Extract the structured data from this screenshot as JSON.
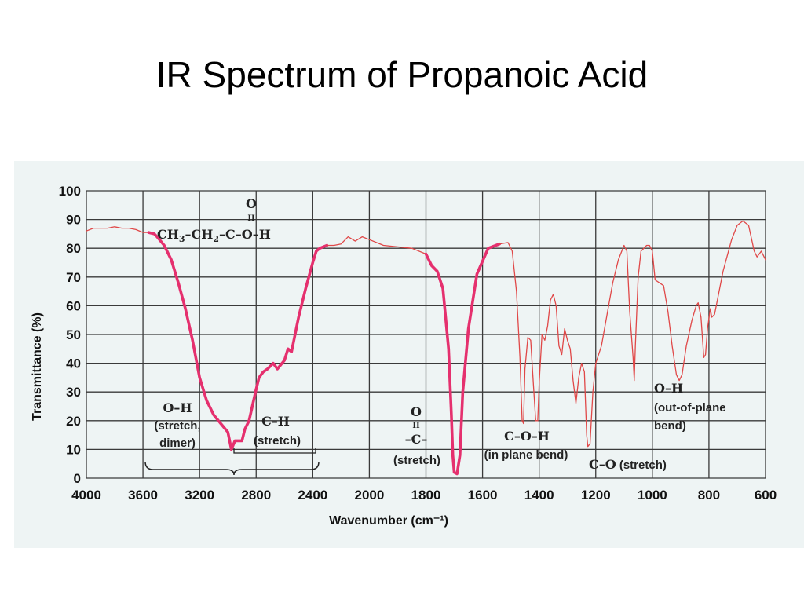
{
  "slide": {
    "title": "IR Spectrum of Propanoic Acid"
  },
  "colors": {
    "spectrum": "#e5306e",
    "spectrum_light": "#e04848",
    "grid": "#3a3a3a",
    "panel": "#eef4f4"
  },
  "chart_data": {
    "type": "line",
    "xlabel": "Wavenumber (cm⁻¹)",
    "ylabel": "Transmittance (%)",
    "xlim": [
      4000,
      600
    ],
    "ylim": [
      0,
      100
    ],
    "x_reversed": true,
    "grid": true,
    "x_ticks": [
      4000,
      3600,
      3200,
      2800,
      2400,
      2000,
      1800,
      1600,
      1400,
      1200,
      1000,
      800,
      600
    ],
    "y_ticks": [
      0,
      10,
      20,
      30,
      40,
      50,
      60,
      70,
      80,
      90,
      100
    ],
    "x_tick_labels": [
      "4000",
      "3600",
      "3200",
      "2800",
      "2400",
      "2000",
      "1800",
      "1600",
      "1400",
      "1200",
      "1000",
      "800",
      "600"
    ],
    "y_tick_labels": [
      "0",
      "10",
      "20",
      "30",
      "40",
      "50",
      "60",
      "70",
      "80",
      "90",
      "100"
    ],
    "series": [
      {
        "points": [
          [
            4000,
            86
          ],
          [
            3950,
            87
          ],
          [
            3900,
            87
          ],
          [
            3850,
            87
          ],
          [
            3800,
            87.5
          ],
          [
            3750,
            87
          ],
          [
            3700,
            87
          ],
          [
            3650,
            86.5
          ],
          [
            3600,
            85.5
          ],
          [
            3560,
            85.5
          ],
          [
            3520,
            85
          ],
          [
            3500,
            84
          ],
          [
            3450,
            81
          ],
          [
            3400,
            76
          ],
          [
            3350,
            68
          ],
          [
            3300,
            59
          ],
          [
            3250,
            48
          ],
          [
            3200,
            35
          ],
          [
            3150,
            27
          ],
          [
            3100,
            22
          ],
          [
            3050,
            19
          ],
          [
            3000,
            16
          ],
          [
            2975,
            10
          ],
          [
            2950,
            13
          ],
          [
            2920,
            13
          ],
          [
            2900,
            13
          ],
          [
            2880,
            17
          ],
          [
            2850,
            20
          ],
          [
            2800,
            31
          ],
          [
            2780,
            35
          ],
          [
            2750,
            37
          ],
          [
            2720,
            38
          ],
          [
            2700,
            39
          ],
          [
            2680,
            40
          ],
          [
            2650,
            38
          ],
          [
            2600,
            41
          ],
          [
            2575,
            45
          ],
          [
            2550,
            44
          ],
          [
            2500,
            56
          ],
          [
            2450,
            66
          ],
          [
            2400,
            75
          ],
          [
            2375,
            79
          ],
          [
            2350,
            80
          ],
          [
            2300,
            81
          ],
          [
            2250,
            81
          ],
          [
            2200,
            81.5
          ],
          [
            2150,
            84
          ],
          [
            2100,
            82.5
          ],
          [
            2050,
            84
          ],
          [
            2000,
            83
          ],
          [
            1950,
            81
          ],
          [
            1900,
            80.5
          ],
          [
            1850,
            80
          ],
          [
            1800,
            78
          ],
          [
            1780,
            74
          ],
          [
            1760,
            72
          ],
          [
            1740,
            66
          ],
          [
            1720,
            45
          ],
          [
            1710,
            22
          ],
          [
            1705,
            8
          ],
          [
            1700,
            2
          ],
          [
            1690,
            1.5
          ],
          [
            1680,
            8
          ],
          [
            1670,
            30
          ],
          [
            1650,
            52
          ],
          [
            1620,
            71
          ],
          [
            1580,
            80
          ],
          [
            1540,
            81.5
          ],
          [
            1510,
            82
          ],
          [
            1495,
            79
          ],
          [
            1480,
            65
          ],
          [
            1468,
            42
          ],
          [
            1460,
            20
          ],
          [
            1455,
            19
          ],
          [
            1450,
            38
          ],
          [
            1440,
            49
          ],
          [
            1430,
            48
          ],
          [
            1420,
            32
          ],
          [
            1412,
            20
          ],
          [
            1405,
            20
          ],
          [
            1400,
            33
          ],
          [
            1390,
            50
          ],
          [
            1380,
            48
          ],
          [
            1370,
            53
          ],
          [
            1360,
            62
          ],
          [
            1350,
            64
          ],
          [
            1340,
            60
          ],
          [
            1330,
            46
          ],
          [
            1320,
            43
          ],
          [
            1310,
            52
          ],
          [
            1300,
            48
          ],
          [
            1290,
            45
          ],
          [
            1280,
            34
          ],
          [
            1270,
            26
          ],
          [
            1260,
            35
          ],
          [
            1250,
            40
          ],
          [
            1240,
            37
          ],
          [
            1232,
            15
          ],
          [
            1228,
            11
          ],
          [
            1220,
            12
          ],
          [
            1210,
            30
          ],
          [
            1200,
            40
          ],
          [
            1180,
            46
          ],
          [
            1160,
            57
          ],
          [
            1140,
            68
          ],
          [
            1120,
            76
          ],
          [
            1100,
            81
          ],
          [
            1090,
            79
          ],
          [
            1080,
            58
          ],
          [
            1068,
            42
          ],
          [
            1064,
            34
          ],
          [
            1060,
            46
          ],
          [
            1050,
            70
          ],
          [
            1040,
            79
          ],
          [
            1020,
            81
          ],
          [
            1010,
            81
          ],
          [
            1000,
            79
          ],
          [
            990,
            69
          ],
          [
            960,
            67
          ],
          [
            945,
            58
          ],
          [
            930,
            46
          ],
          [
            915,
            36
          ],
          [
            905,
            34
          ],
          [
            895,
            36
          ],
          [
            880,
            46
          ],
          [
            860,
            55
          ],
          [
            845,
            60
          ],
          [
            838,
            61
          ],
          [
            828,
            56
          ],
          [
            818,
            42
          ],
          [
            812,
            43
          ],
          [
            805,
            52
          ],
          [
            795,
            59
          ],
          [
            790,
            56
          ],
          [
            780,
            57
          ],
          [
            770,
            62
          ],
          [
            750,
            72
          ],
          [
            720,
            83
          ],
          [
            700,
            88
          ],
          [
            680,
            89.5
          ],
          [
            660,
            88
          ],
          [
            640,
            79
          ],
          [
            630,
            77
          ],
          [
            615,
            79
          ],
          [
            605,
            77
          ],
          [
            600,
            76
          ]
        ]
      }
    ],
    "annotations": {
      "molecule": {
        "carbonyl_o": "O",
        "double_bond": "II",
        "formula_parts": [
          "CH",
          "3",
          "–CH",
          "2",
          "–C–O–H"
        ]
      },
      "oh_stretch": {
        "line1": "O–H",
        "line2": "(stretch,",
        "line3": "dimer)"
      },
      "ch_stretch": {
        "line1": "C–H",
        "line2": "(stretch)"
      },
      "co_stretch": {
        "line1": "O",
        "line2": "II",
        "line3": "–C–",
        "line4": "(stretch)"
      },
      "coh_bend": {
        "line1": "C–O–H",
        "line2": "(in plane bend)"
      },
      "c_o_stretch": {
        "bold": "C–O",
        "normal": " (stretch)"
      },
      "oh_oop": {
        "line1": "O–H",
        "line2": "(out-of-plane",
        "line3": "bend)"
      }
    }
  }
}
